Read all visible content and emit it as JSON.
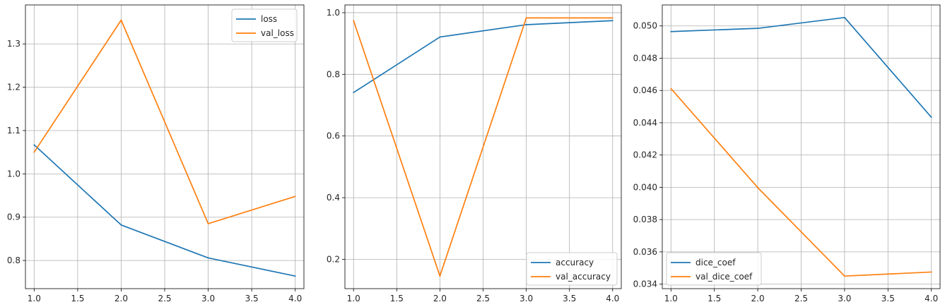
{
  "colors": {
    "blue": "#1f77b4",
    "orange": "#ff7f0e",
    "grid": "#b0b0b0",
    "frame": "#000000"
  },
  "chart_data": [
    {
      "type": "line",
      "x": [
        1.0,
        2.0,
        3.0,
        4.0
      ],
      "series": [
        {
          "name": "loss",
          "color": "#1f77b4",
          "values": [
            1.067,
            0.882,
            0.806,
            0.764
          ]
        },
        {
          "name": "val_loss",
          "color": "#ff7f0e",
          "values": [
            1.05,
            1.355,
            0.885,
            0.948
          ]
        }
      ],
      "xlim": [
        0.9,
        4.1
      ],
      "ylim": [
        0.735,
        1.39
      ],
      "xticks": [
        1.0,
        1.5,
        2.0,
        2.5,
        3.0,
        3.5,
        4.0
      ],
      "xtick_labels": [
        "1.0",
        "1.5",
        "2.0",
        "2.5",
        "3.0",
        "3.5",
        "4.0"
      ],
      "yticks": [
        0.8,
        0.9,
        1.0,
        1.1,
        1.2,
        1.3
      ],
      "ytick_labels": [
        "0.8",
        "0.9",
        "1.0",
        "1.1",
        "1.2",
        "1.3"
      ],
      "grid": true,
      "legend": "upper-right"
    },
    {
      "type": "line",
      "x": [
        1.0,
        2.0,
        3.0,
        4.0
      ],
      "series": [
        {
          "name": "accuracy",
          "color": "#1f77b4",
          "values": [
            0.741,
            0.921,
            0.961,
            0.974
          ]
        },
        {
          "name": "val_accuracy",
          "color": "#ff7f0e",
          "values": [
            0.974,
            0.146,
            0.983,
            0.983
          ]
        }
      ],
      "xlim": [
        0.9,
        4.1
      ],
      "ylim": [
        0.105,
        1.025
      ],
      "xticks": [
        1.0,
        1.5,
        2.0,
        2.5,
        3.0,
        3.5,
        4.0
      ],
      "xtick_labels": [
        "1.0",
        "1.5",
        "2.0",
        "2.5",
        "3.0",
        "3.5",
        "4.0"
      ],
      "yticks": [
        0.2,
        0.4,
        0.6,
        0.8,
        1.0
      ],
      "ytick_labels": [
        "0.2",
        "0.4",
        "0.6",
        "0.8",
        "1.0"
      ],
      "grid": true,
      "legend": "lower-right"
    },
    {
      "type": "line",
      "x": [
        1.0,
        2.0,
        3.0,
        4.0
      ],
      "series": [
        {
          "name": "dice_coef",
          "color": "#1f77b4",
          "values": [
            0.04965,
            0.04985,
            0.05052,
            0.04434
          ]
        },
        {
          "name": "val_dice_coef",
          "color": "#ff7f0e",
          "values": [
            0.04612,
            0.03998,
            0.0345,
            0.03475
          ]
        }
      ],
      "xlim": [
        0.9,
        4.1
      ],
      "ylim": [
        0.03372,
        0.0513
      ],
      "xticks": [
        1.0,
        1.5,
        2.0,
        2.5,
        3.0,
        3.5,
        4.0
      ],
      "xtick_labels": [
        "1.0",
        "1.5",
        "2.0",
        "2.5",
        "3.0",
        "3.5",
        "4.0"
      ],
      "yticks": [
        0.034,
        0.036,
        0.038,
        0.04,
        0.042,
        0.044,
        0.046,
        0.048,
        0.05
      ],
      "ytick_labels": [
        "0.034",
        "0.036",
        "0.038",
        "0.040",
        "0.042",
        "0.044",
        "0.046",
        "0.048",
        "0.050"
      ],
      "grid": true,
      "legend": "lower-left"
    }
  ]
}
